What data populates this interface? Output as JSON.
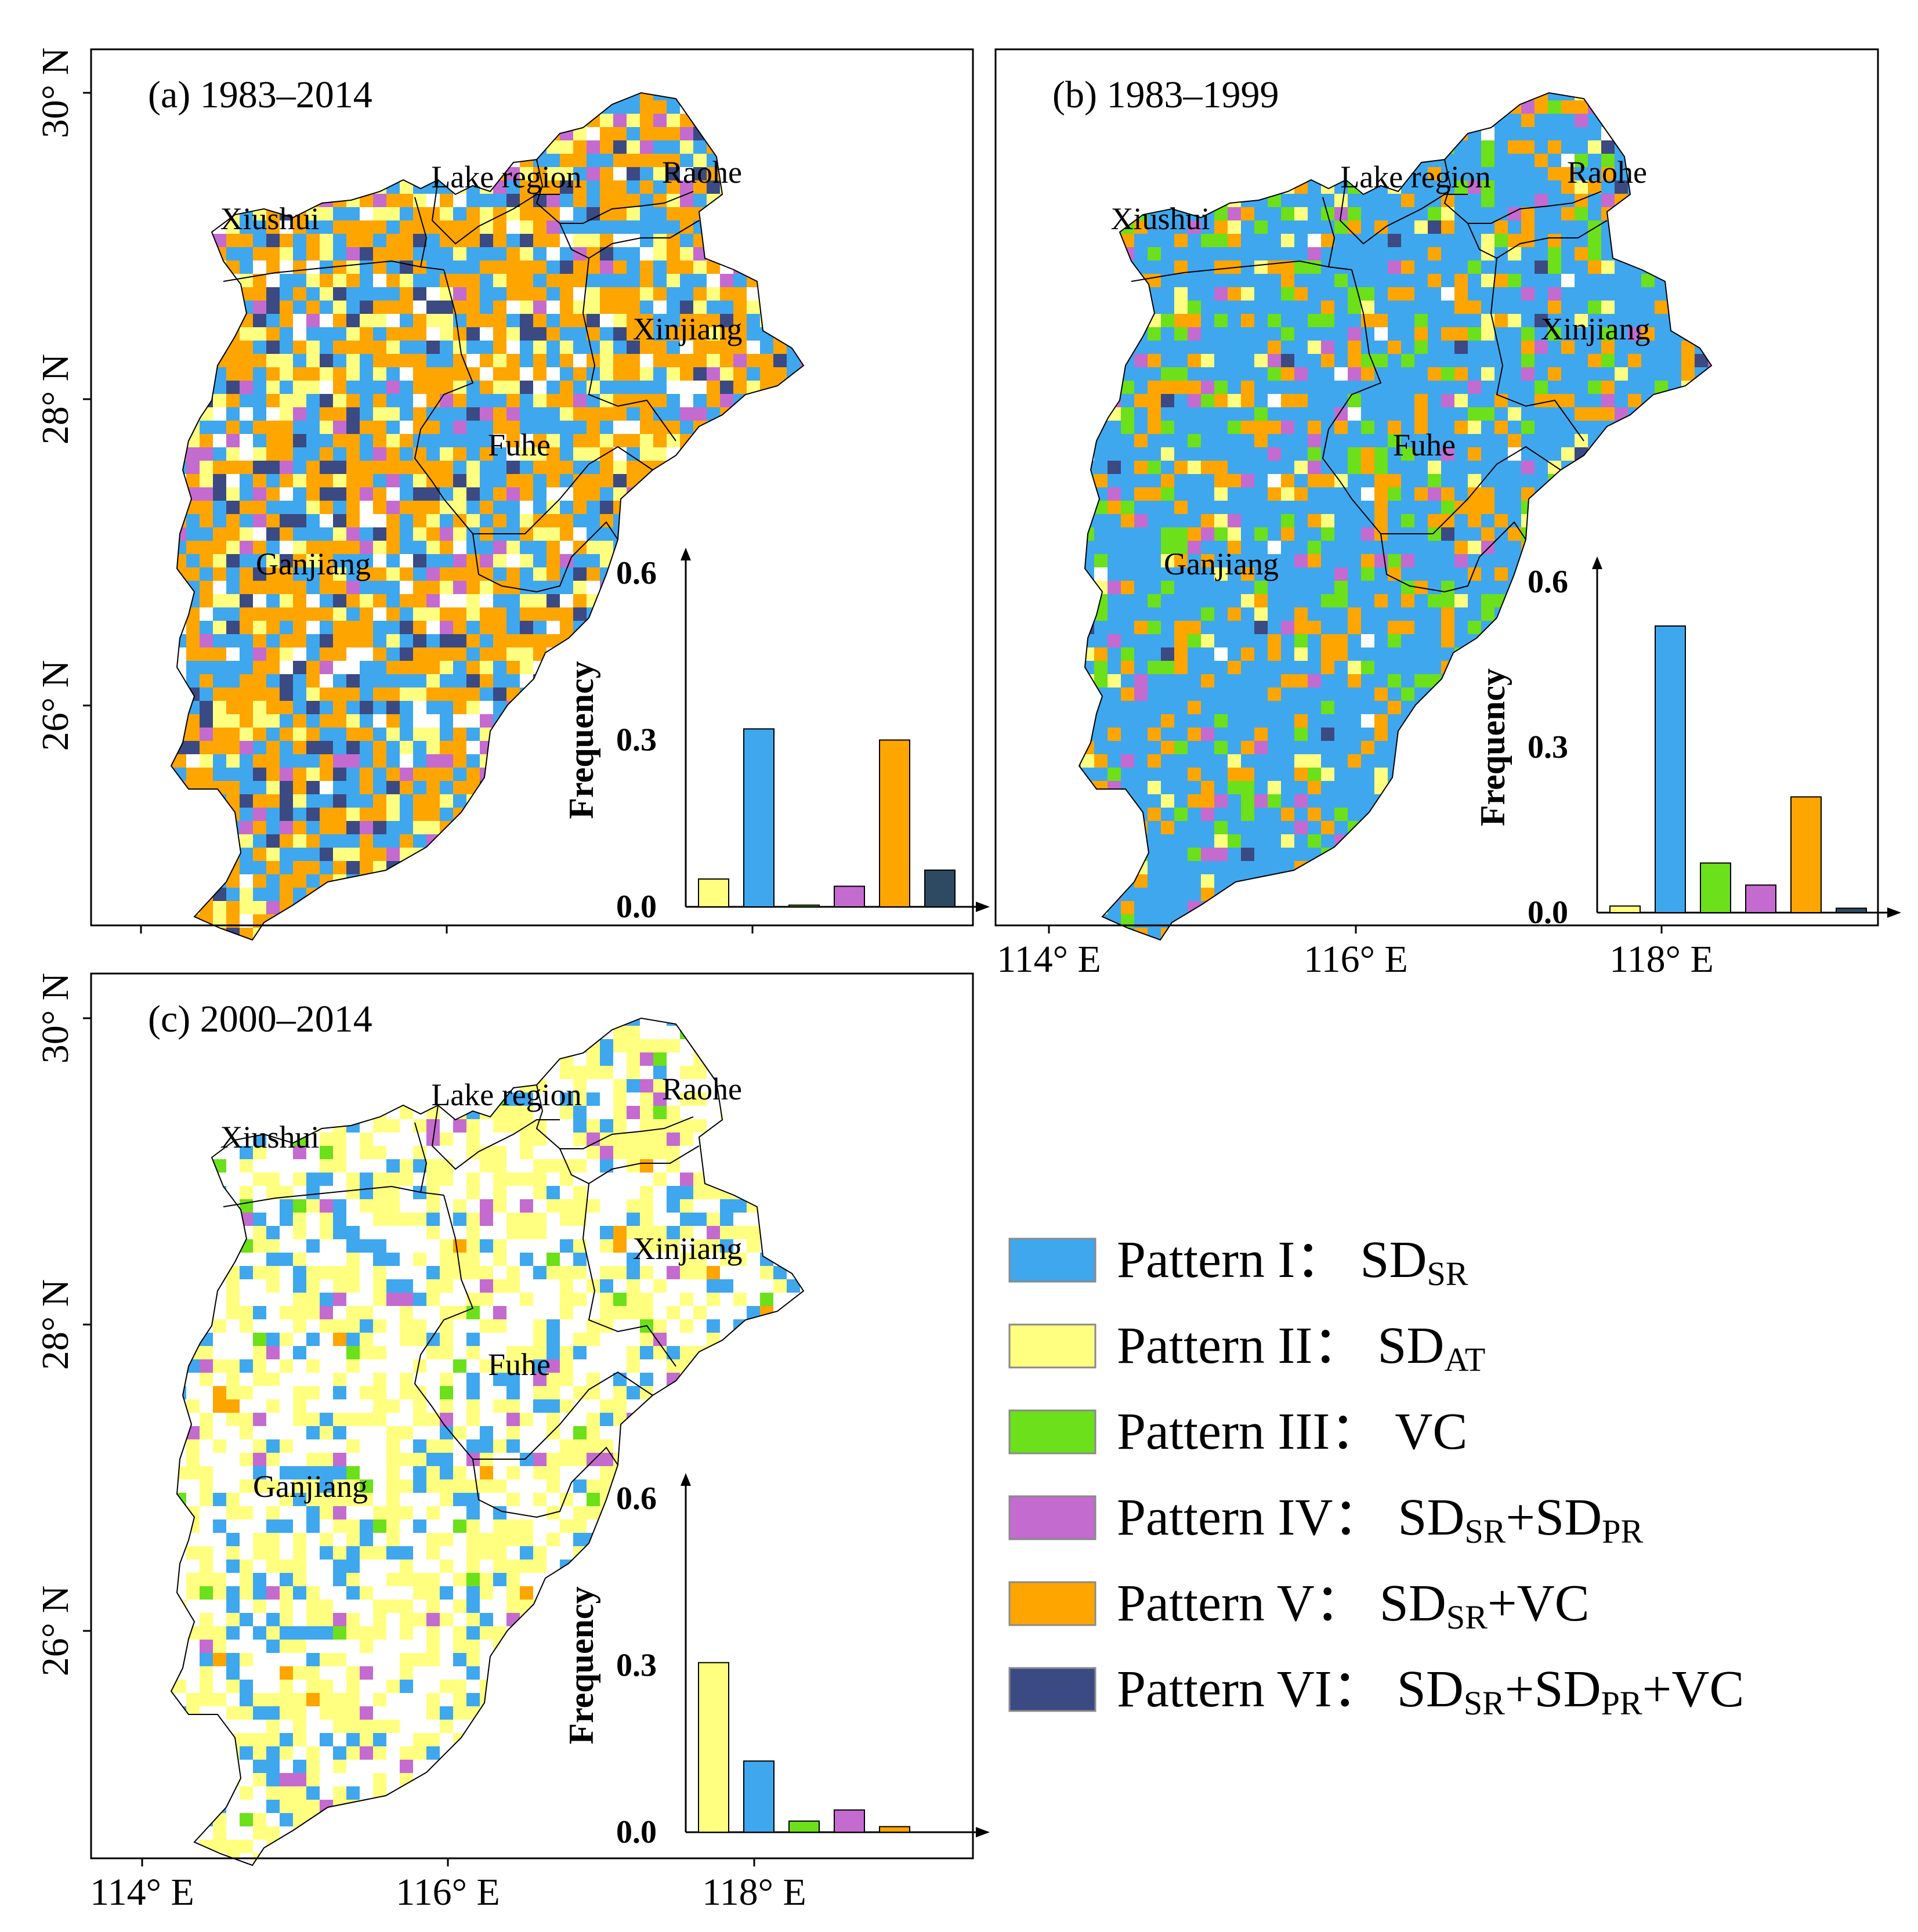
{
  "panels": [
    {
      "id": "a",
      "title": "(a) 1983–2014",
      "y_ticks": [
        "30° N",
        "28° N",
        "26° N"
      ],
      "x_ticks": [],
      "regions": [
        "Lake region",
        "Raohe",
        "Xiushui",
        "Xinjiang",
        "Fuhe",
        "Ganjiang"
      ],
      "inset_ylabel": "Frequency",
      "inset_yticks": [
        "0.6",
        "0.3",
        "0.0"
      ]
    },
    {
      "id": "b",
      "title": "(b) 1983–1999",
      "y_ticks": [],
      "x_ticks": [
        "114° E",
        "116° E",
        "118° E"
      ],
      "regions": [
        "Lake region",
        "Raohe",
        "Xiushui",
        "Xinjiang",
        "Fuhe",
        "Ganjiang"
      ],
      "inset_ylabel": "Frequency",
      "inset_yticks": [
        "0.6",
        "0.3",
        "0.0"
      ]
    },
    {
      "id": "c",
      "title": "(c) 2000–2014",
      "y_ticks": [
        "30° N",
        "28° N",
        "26° N"
      ],
      "x_ticks": [
        "114° E",
        "116° E",
        "118° E"
      ],
      "regions": [
        "Lake region",
        "Raohe",
        "Xiushui",
        "Xinjiang",
        "Fuhe",
        "Ganjiang"
      ],
      "inset_ylabel": "Frequency",
      "inset_yticks": [
        "0.6",
        "0.3",
        "0.0"
      ]
    }
  ],
  "legend": [
    {
      "label": "Pattern I：",
      "formula": "SD",
      "sub": "SR",
      "color": "#3FA7EE"
    },
    {
      "label": "Pattern II：",
      "formula": "SD",
      "sub": "AT",
      "color": "#FFFF80"
    },
    {
      "label": "Pattern III：",
      "formula": "VC",
      "sub": "",
      "color": "#6CE01A"
    },
    {
      "label": "Pattern IV：",
      "formula": "SD",
      "sub": "SR",
      "extra": "+SD",
      "sub2": "PR",
      "color": "#C46BD0"
    },
    {
      "label": "Pattern V：",
      "formula": "SD",
      "sub": "SR",
      "extra": "+VC",
      "color": "#FFA500"
    },
    {
      "label": "Pattern VI：",
      "formula": "SD",
      "sub": "SR",
      "extra": "+SD",
      "sub2": "PR",
      "extra2": "+VC",
      "color": "#3B4A82"
    }
  ],
  "chart_data": [
    {
      "type": "bar",
      "title": "(a) 1983–2014",
      "categories": [
        "Pattern II",
        "Pattern I",
        "Pattern III",
        "Pattern IV",
        "Pattern V",
        "Pattern VI"
      ],
      "values": [
        0.05,
        0.32,
        0.003,
        0.037,
        0.3,
        0.066
      ],
      "colors": [
        "#FFFF80",
        "#3FA7EE",
        "#6CE01A",
        "#C46BD0",
        "#FFA500",
        "#2E4A63"
      ],
      "ylabel": "Frequency",
      "ylim": [
        0,
        0.6
      ]
    },
    {
      "type": "bar",
      "title": "(b) 1983–1999",
      "categories": [
        "Pattern II",
        "Pattern I",
        "Pattern III",
        "Pattern IV",
        "Pattern V",
        "Pattern VI"
      ],
      "values": [
        0.012,
        0.52,
        0.09,
        0.05,
        0.21,
        0.008
      ],
      "colors": [
        "#FFFF80",
        "#3FA7EE",
        "#6CE01A",
        "#C46BD0",
        "#FFA500",
        "#2E4A63"
      ],
      "ylabel": "Frequency",
      "ylim": [
        0,
        0.6
      ]
    },
    {
      "type": "bar",
      "title": "(c) 2000–2014",
      "categories": [
        "Pattern II",
        "Pattern I",
        "Pattern III",
        "Pattern IV",
        "Pattern V",
        "Pattern VI"
      ],
      "values": [
        0.305,
        0.128,
        0.02,
        0.04,
        0.01,
        0.0
      ],
      "colors": [
        "#FFFF80",
        "#3FA7EE",
        "#6CE01A",
        "#C46BD0",
        "#FFA500",
        "#2E4A63"
      ],
      "ylabel": "Frequency",
      "ylim": [
        0,
        0.6
      ]
    }
  ]
}
